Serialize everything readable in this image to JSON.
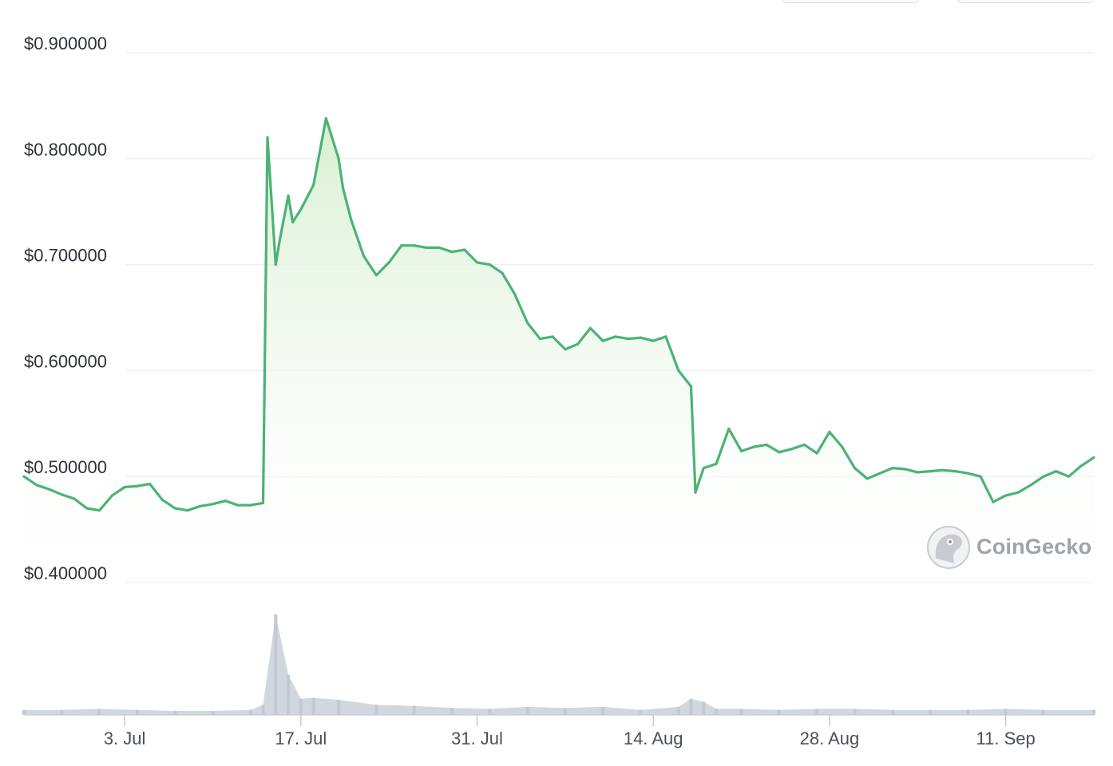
{
  "toolbar": {
    "control_1_label": "",
    "control_2_label": ""
  },
  "watermark": {
    "text": "CoinGecko",
    "icon": "gecko-logo-icon"
  },
  "colors": {
    "line": "#4cb375",
    "area_top": "#d5efcf",
    "volume": "#c2c9d3",
    "grid": "#eceef1"
  },
  "chart_data": {
    "type": "line",
    "title": "",
    "xlabel": "",
    "ylabel": "",
    "ylim": [
      0.4,
      0.9
    ],
    "yticks": [
      0.9,
      0.8,
      0.7,
      0.6,
      0.5,
      0.4
    ],
    "ytick_labels": [
      "$0.900000",
      "$0.800000",
      "$0.700000",
      "$0.600000",
      "$0.500000",
      "$0.400000"
    ],
    "xlim": [
      "2023-06-25",
      "2023-09-18"
    ],
    "xticks": [
      "2023-07-03",
      "2023-07-17",
      "2023-07-31",
      "2023-08-14",
      "2023-08-28",
      "2023-09-11"
    ],
    "xtick_labels": [
      "3. Jul",
      "17. Jul",
      "31. Jul",
      "14. Aug",
      "28. Aug",
      "11. Sep"
    ],
    "grid": true,
    "series": [
      {
        "kind": "price",
        "x": [
          "2023-06-25",
          "2023-06-26",
          "2023-06-27",
          "2023-06-28",
          "2023-06-29",
          "2023-06-30",
          "2023-07-01",
          "2023-07-02",
          "2023-07-03",
          "2023-07-04",
          "2023-07-05",
          "2023-07-06",
          "2023-07-07",
          "2023-07-08",
          "2023-07-09",
          "2023-07-10",
          "2023-07-11",
          "2023-07-12",
          "2023-07-13",
          "2023-07-14",
          "2023-07-14",
          "2023-07-15",
          "2023-07-15",
          "2023-07-16",
          "2023-07-16",
          "2023-07-17",
          "2023-07-18",
          "2023-07-19",
          "2023-07-20",
          "2023-07-20",
          "2023-07-21",
          "2023-07-22",
          "2023-07-23",
          "2023-07-24",
          "2023-07-25",
          "2023-07-26",
          "2023-07-27",
          "2023-07-28",
          "2023-07-29",
          "2023-07-30",
          "2023-07-31",
          "2023-08-01",
          "2023-08-02",
          "2023-08-03",
          "2023-08-04",
          "2023-08-05",
          "2023-08-06",
          "2023-08-07",
          "2023-08-08",
          "2023-08-09",
          "2023-08-10",
          "2023-08-11",
          "2023-08-12",
          "2023-08-13",
          "2023-08-14",
          "2023-08-15",
          "2023-08-16",
          "2023-08-17",
          "2023-08-17",
          "2023-08-18",
          "2023-08-19",
          "2023-08-20",
          "2023-08-21",
          "2023-08-22",
          "2023-08-23",
          "2023-08-24",
          "2023-08-25",
          "2023-08-26",
          "2023-08-27",
          "2023-08-28",
          "2023-08-29",
          "2023-08-30",
          "2023-08-31",
          "2023-09-01",
          "2023-09-02",
          "2023-09-03",
          "2023-09-04",
          "2023-09-05",
          "2023-09-06",
          "2023-09-07",
          "2023-09-08",
          "2023-09-09",
          "2023-09-10",
          "2023-09-11",
          "2023-09-12",
          "2023-09-13",
          "2023-09-14",
          "2023-09-15",
          "2023-09-16",
          "2023-09-17",
          "2023-09-18"
        ],
        "y": [
          0.5,
          0.492,
          0.488,
          0.483,
          0.479,
          0.47,
          0.468,
          0.482,
          0.49,
          0.491,
          0.493,
          0.478,
          0.47,
          0.468,
          0.472,
          0.474,
          0.477,
          0.473,
          0.473,
          0.475,
          0.82,
          0.7,
          0.725,
          0.765,
          0.74,
          0.752,
          0.775,
          0.838,
          0.8,
          0.772,
          0.742,
          0.708,
          0.69,
          0.702,
          0.718,
          0.718,
          0.716,
          0.716,
          0.712,
          0.714,
          0.702,
          0.7,
          0.692,
          0.672,
          0.645,
          0.63,
          0.632,
          0.62,
          0.625,
          0.64,
          0.628,
          0.632,
          0.63,
          0.631,
          0.628,
          0.632,
          0.6,
          0.585,
          0.485,
          0.508,
          0.512,
          0.545,
          0.524,
          0.528,
          0.53,
          0.523,
          0.526,
          0.53,
          0.522,
          0.542,
          0.528,
          0.508,
          0.498,
          0.503,
          0.508,
          0.507,
          0.504,
          0.505,
          0.506,
          0.505,
          0.503,
          0.5,
          0.476,
          0.482,
          0.485,
          0.492,
          0.5,
          0.505,
          0.5,
          0.51,
          0.518
        ]
      },
      {
        "kind": "volume",
        "x": [
          "2023-06-25",
          "2023-06-28",
          "2023-07-01",
          "2023-07-04",
          "2023-07-07",
          "2023-07-10",
          "2023-07-13",
          "2023-07-14",
          "2023-07-15",
          "2023-07-16",
          "2023-07-17",
          "2023-07-18",
          "2023-07-20",
          "2023-07-23",
          "2023-07-26",
          "2023-07-29",
          "2023-08-01",
          "2023-08-04",
          "2023-08-07",
          "2023-08-10",
          "2023-08-13",
          "2023-08-16",
          "2023-08-17",
          "2023-08-18",
          "2023-08-19",
          "2023-08-21",
          "2023-08-24",
          "2023-08-27",
          "2023-08-30",
          "2023-09-02",
          "2023-09-05",
          "2023-09-08",
          "2023-09-11",
          "2023-09-14",
          "2023-09-18"
        ],
        "y": [
          0.05,
          0.05,
          0.06,
          0.05,
          0.04,
          0.04,
          0.05,
          0.1,
          1.0,
          0.4,
          0.16,
          0.17,
          0.15,
          0.1,
          0.09,
          0.07,
          0.06,
          0.08,
          0.07,
          0.08,
          0.05,
          0.08,
          0.16,
          0.13,
          0.06,
          0.06,
          0.05,
          0.06,
          0.06,
          0.05,
          0.05,
          0.05,
          0.06,
          0.05,
          0.05
        ]
      }
    ]
  }
}
